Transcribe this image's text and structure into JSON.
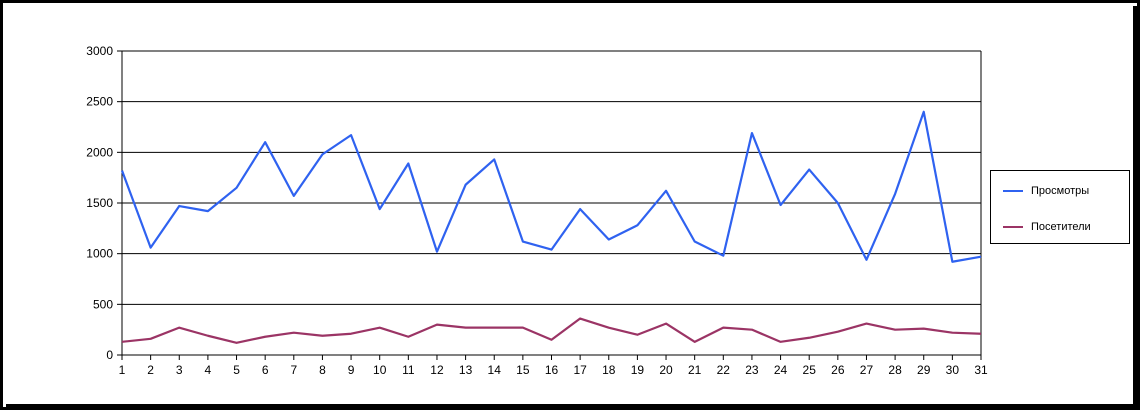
{
  "chart_data": {
    "type": "line",
    "title": "",
    "xlabel": "",
    "ylabel": "",
    "x": [
      1,
      2,
      3,
      4,
      5,
      6,
      7,
      8,
      9,
      10,
      11,
      12,
      13,
      14,
      15,
      16,
      17,
      18,
      19,
      20,
      21,
      22,
      23,
      24,
      25,
      26,
      27,
      28,
      29,
      30,
      31
    ],
    "ylim": [
      0,
      3000
    ],
    "yticks": [
      0,
      500,
      1000,
      1500,
      2000,
      2500,
      3000
    ],
    "grid": true,
    "legend": "right",
    "series": [
      {
        "name": "Просмотры",
        "color": "#2f62f0",
        "values": [
          1820,
          1060,
          1470,
          1420,
          1650,
          2100,
          1570,
          1980,
          2170,
          1440,
          1890,
          1020,
          1680,
          1930,
          1120,
          1040,
          1440,
          1140,
          1280,
          1620,
          1120,
          980,
          2190,
          1480,
          1830,
          1500,
          940,
          1590,
          2400,
          920,
          970
        ]
      },
      {
        "name": "Посетители",
        "color": "#9b3465",
        "values": [
          130,
          160,
          270,
          190,
          120,
          180,
          220,
          190,
          210,
          270,
          180,
          300,
          270,
          270,
          270,
          150,
          360,
          270,
          200,
          310,
          130,
          270,
          250,
          130,
          170,
          230,
          310,
          250,
          260,
          220,
          210
        ]
      }
    ]
  }
}
